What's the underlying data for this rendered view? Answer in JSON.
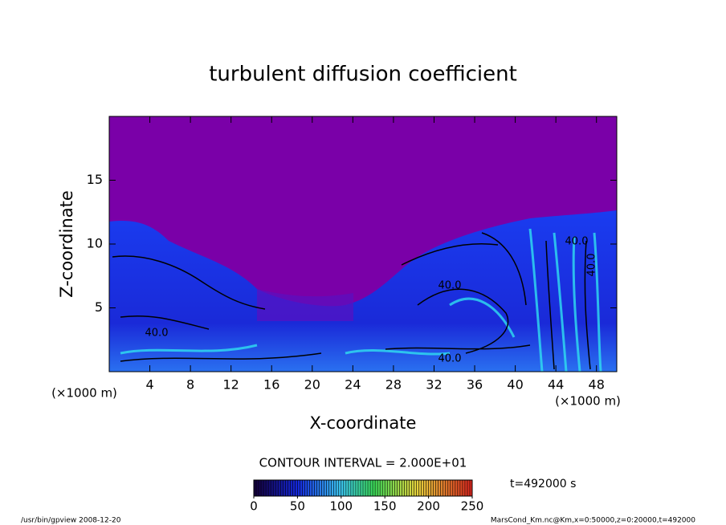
{
  "chart_data": {
    "type": "contour",
    "title": "turbulent diffusion coefficient",
    "x_label": "X-coordinate",
    "y_label": "Z-coordinate",
    "x_unit_label": "(×1000 m)",
    "y_unit_label": "(×1000 m)",
    "xlim": [
      0,
      50
    ],
    "xticks": [
      4,
      8,
      12,
      16,
      20,
      24,
      28,
      32,
      36,
      40,
      44,
      48
    ],
    "ylim": [
      0,
      20
    ],
    "yticks": [
      5,
      10,
      15
    ],
    "contour_labels": [
      "40.0",
      "40.0",
      "40.0",
      "40.0",
      "40.0"
    ],
    "contour_interval_label": "CONTOUR INTERVAL = 2.000E+01",
    "time_label": "t=492000 s",
    "colorbar": {
      "lim": [
        0,
        250
      ],
      "ticks": [
        0,
        50,
        100,
        150,
        200,
        250
      ]
    },
    "footer_left": "/usr/bin/gpview   2008-12-20",
    "footer_right": "MarsCond_Km.nc@Km,x=0:50000,z=0:20000,t=492000"
  }
}
